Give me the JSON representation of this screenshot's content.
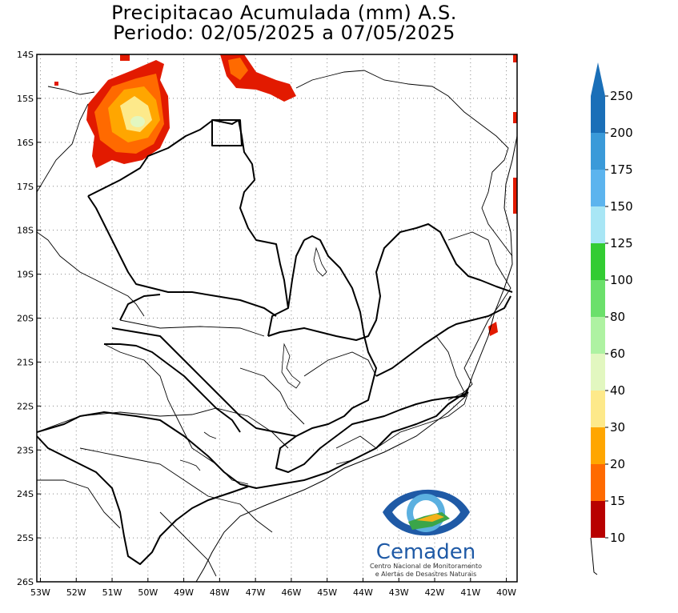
{
  "map": {
    "title_line1": "Precipitacao Acumulada (mm) A.S.",
    "title_line2": "Periodo: 02/05/2025 a 07/05/2025",
    "lat_labels": [
      "14S",
      "15S",
      "16S",
      "17S",
      "18S",
      "19S",
      "20S",
      "21S",
      "22S",
      "23S",
      "24S",
      "25S",
      "26S"
    ],
    "lon_labels": [
      "53W",
      "52W",
      "51W",
      "50W",
      "49W",
      "48W",
      "47W",
      "46W",
      "45W",
      "44W",
      "43W",
      "42W",
      "41W",
      "40W"
    ],
    "extent": {
      "lon_min": -53.1,
      "lon_max": -39.7,
      "lat_min": -26,
      "lat_max": -14
    },
    "precip_areas": [
      {
        "region": "northwest Goias / Mato Grosso border",
        "max_class": "40-80 mm"
      },
      {
        "region": "central Goias (north of Brasilia)",
        "max_class": "20-30 mm"
      },
      {
        "region": "east coast Bahia",
        "max_class": "15-20 mm"
      },
      {
        "region": "Espirito Santo coast",
        "max_class": "15-20 mm"
      }
    ]
  },
  "colorbar": {
    "labels": [
      "250",
      "200",
      "175",
      "150",
      "125",
      "100",
      "80",
      "60",
      "40",
      "30",
      "20",
      "15",
      "10"
    ],
    "colors": [
      "#1a6fb8",
      "#3a9ad9",
      "#5cb4ee",
      "#a8e6f5",
      "#33cc33",
      "#6be06b",
      "#aef2a2",
      "#e2f7c0",
      "#fde98a",
      "#ffa600",
      "#ff6a00",
      "#e21a00",
      "#b80000"
    ],
    "top_arrow_color": "#1a6fb8"
  },
  "logo": {
    "name": "Cemaden",
    "subtitle_line1": "Centro Nacional de Monitoramento",
    "subtitle_line2": "e Alertas de Desastres Naturais"
  }
}
